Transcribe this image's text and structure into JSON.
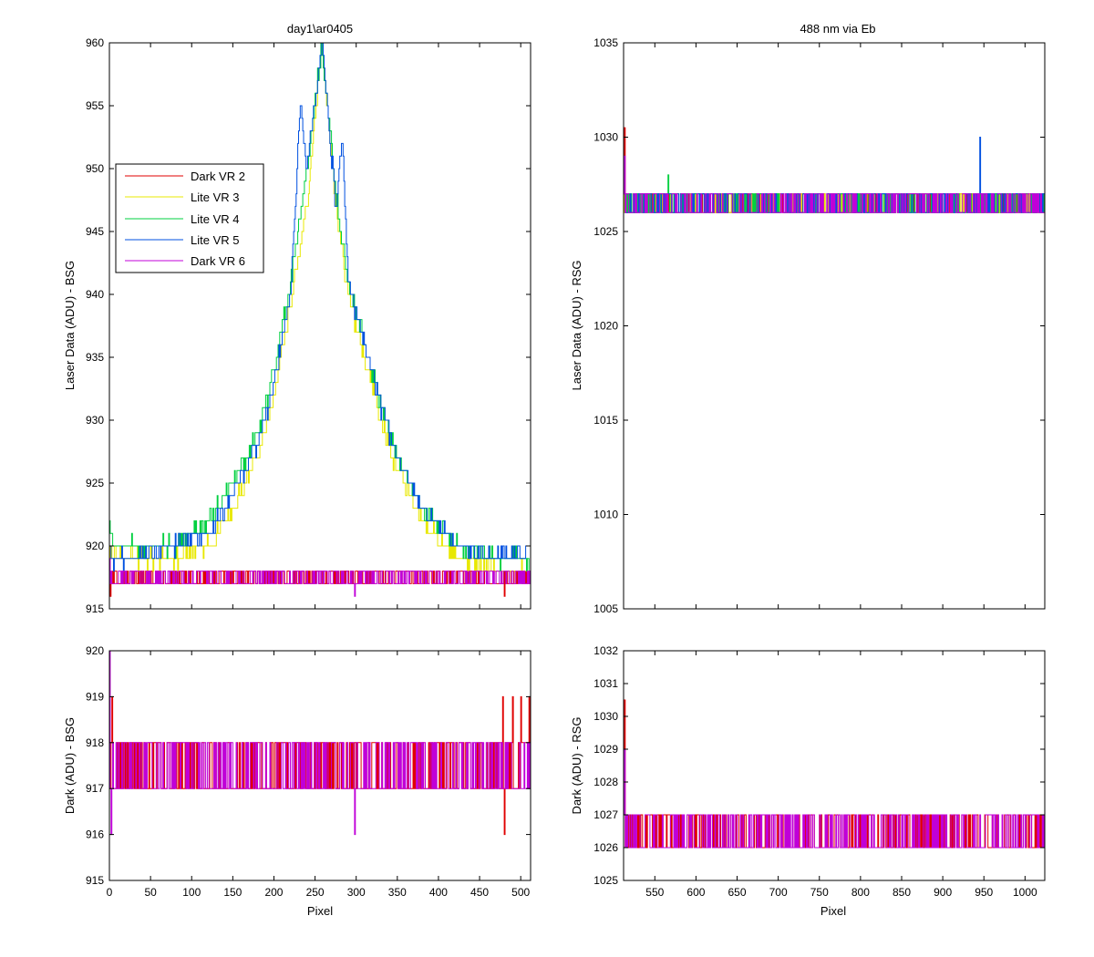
{
  "figure": {
    "panels": [
      {
        "id": "top_left",
        "title": "day1\\ar0405",
        "ylabel": "Laser Data (ADU) - BSG",
        "xlabel": "",
        "xlim": [
          0,
          512
        ],
        "ylim": [
          915,
          960
        ]
      },
      {
        "id": "top_right",
        "title": "488 nm via Eb",
        "ylabel": "Laser Data (ADU) - RSG",
        "xlabel": "",
        "xlim": [
          512,
          1024
        ],
        "ylim": [
          1005,
          1035
        ]
      },
      {
        "id": "bottom_left",
        "title": "",
        "ylabel": "Dark (ADU) - BSG",
        "xlabel": "Pixel",
        "xlim": [
          0,
          512
        ],
        "ylim": [
          915,
          920
        ]
      },
      {
        "id": "bottom_right",
        "title": "",
        "ylabel": "Dark (ADU) - RSG",
        "xlabel": "Pixel",
        "xlim": [
          512,
          1024
        ],
        "ylim": [
          1025,
          1032
        ]
      }
    ],
    "legend": {
      "placement": "upper-left of top-left panel",
      "entries": [
        {
          "name": "Dark VR 2",
          "color": "#e00000"
        },
        {
          "name": "Lite VR 3",
          "color": "#e8e800"
        },
        {
          "name": "Lite VR 4",
          "color": "#00d040"
        },
        {
          "name": "Lite VR 5",
          "color": "#0050e0"
        },
        {
          "name": "Dark VR 6",
          "color": "#c000d8"
        }
      ]
    }
  },
  "chart_data": [
    {
      "type": "line",
      "panel": "top_left",
      "title": "day1\\ar0405",
      "ylabel": "Laser Data (ADU) - BSG",
      "xlim": [
        0,
        512
      ],
      "ylim": [
        915,
        960
      ],
      "xticks": [
        0,
        50,
        100,
        150,
        200,
        250,
        300,
        350,
        400,
        450,
        500
      ],
      "yticks": [
        915,
        920,
        925,
        930,
        935,
        940,
        945,
        950,
        955,
        960
      ],
      "show_xtick_labels": false,
      "series": [
        {
          "name": "Dark VR 2",
          "color": "#e00000",
          "kind": "noise",
          "base": 917,
          "alt": 918,
          "spikes": [
            [
              1,
              916
            ],
            [
              480,
              916
            ]
          ]
        },
        {
          "name": "Lite VR 3",
          "color": "#e8e800",
          "kind": "peak",
          "x": [
            0,
            5,
            30,
            80,
            120,
            150,
            180,
            200,
            220,
            240,
            258,
            275,
            290,
            310,
            330,
            350,
            380,
            420,
            470,
            512
          ],
          "y": [
            920,
            919,
            919,
            919,
            920,
            923,
            927,
            932,
            939,
            947,
            960,
            947,
            940,
            935,
            930,
            926,
            922,
            919,
            918,
            918
          ]
        },
        {
          "name": "Lite VR 4",
          "color": "#00d040",
          "kind": "peak",
          "x": [
            0,
            5,
            30,
            80,
            120,
            150,
            180,
            200,
            220,
            240,
            258,
            275,
            290,
            310,
            330,
            350,
            380,
            420,
            470,
            512
          ],
          "y": [
            922,
            920,
            920,
            920,
            922,
            925,
            929,
            934,
            941,
            950,
            960,
            948,
            941,
            936,
            931,
            927,
            923,
            920,
            919,
            919
          ]
        },
        {
          "name": "Lite VR 5",
          "color": "#0050e0",
          "kind": "peak",
          "x": [
            0,
            5,
            30,
            80,
            120,
            150,
            180,
            200,
            220,
            232,
            240,
            258,
            275,
            283,
            290,
            310,
            330,
            350,
            380,
            420,
            470,
            512
          ],
          "y": [
            920,
            919,
            919,
            920,
            921,
            924,
            928,
            933,
            940,
            955,
            950,
            960,
            947,
            952,
            941,
            936,
            931,
            927,
            923,
            920,
            919,
            920
          ]
        },
        {
          "name": "Dark VR 6",
          "color": "#c000d8",
          "kind": "noise",
          "base": 917,
          "alt": 918,
          "spikes": [
            [
              0,
              919
            ],
            [
              298,
              916
            ]
          ]
        }
      ]
    },
    {
      "type": "line",
      "panel": "top_right",
      "title": "488 nm via Eb",
      "ylabel": "Laser Data (ADU) - RSG",
      "xlim": [
        512,
        1024
      ],
      "ylim": [
        1005,
        1035
      ],
      "xticks": [
        550,
        600,
        650,
        700,
        750,
        800,
        850,
        900,
        950,
        1000
      ],
      "yticks": [
        1005,
        1010,
        1015,
        1020,
        1025,
        1030,
        1035
      ],
      "show_xtick_labels": false,
      "series": [
        {
          "name": "Dark VR 2",
          "color": "#e00000",
          "kind": "noise",
          "base": 1026,
          "alt": 1027,
          "spikes": [
            [
              513,
              1030.5
            ]
          ]
        },
        {
          "name": "Lite VR 3",
          "color": "#e8e800",
          "kind": "noise",
          "base": 1026,
          "alt": 1027,
          "spikes": []
        },
        {
          "name": "Lite VR 4",
          "color": "#00d040",
          "kind": "noise",
          "base": 1026,
          "alt": 1027,
          "spikes": [
            [
              566,
              1028
            ]
          ]
        },
        {
          "name": "Lite VR 5",
          "color": "#0050e0",
          "kind": "noise",
          "base": 1026,
          "alt": 1027,
          "spikes": [
            [
              945,
              1030
            ]
          ]
        },
        {
          "name": "Dark VR 6",
          "color": "#c000d8",
          "kind": "noise",
          "base": 1026,
          "alt": 1027,
          "spikes": [
            [
              513,
              1029
            ]
          ]
        }
      ]
    },
    {
      "type": "line",
      "panel": "bottom_left",
      "ylabel": "Dark (ADU) - BSG",
      "xlabel": "Pixel",
      "xlim": [
        0,
        512
      ],
      "ylim": [
        915,
        920
      ],
      "xticks": [
        0,
        50,
        100,
        150,
        200,
        250,
        300,
        350,
        400,
        450,
        500
      ],
      "yticks": [
        915,
        916,
        917,
        918,
        919,
        920
      ],
      "show_xtick_labels": true,
      "series": [
        {
          "name": "Dark VR 2",
          "color": "#e00000",
          "kind": "noise",
          "base": 917,
          "alt": 918,
          "spikes": [
            [
              3,
              919
            ],
            [
              478,
              919
            ],
            [
              480,
              916
            ],
            [
              490,
              919
            ],
            [
              500,
              919
            ],
            [
              510,
              919
            ]
          ]
        },
        {
          "name": "Dark VR 6",
          "color": "#c000d8",
          "kind": "noise",
          "base": 917,
          "alt": 918,
          "spikes": [
            [
              0,
              920
            ],
            [
              2,
              916
            ],
            [
              298,
              916
            ]
          ]
        }
      ]
    },
    {
      "type": "line",
      "panel": "bottom_right",
      "ylabel": "Dark (ADU) - RSG",
      "xlabel": "Pixel",
      "xlim": [
        512,
        1024
      ],
      "ylim": [
        1025,
        1032
      ],
      "xticks": [
        550,
        600,
        650,
        700,
        750,
        800,
        850,
        900,
        950,
        1000
      ],
      "yticks": [
        1025,
        1026,
        1027,
        1028,
        1029,
        1030,
        1031,
        1032
      ],
      "show_xtick_labels": true,
      "series": [
        {
          "name": "Dark VR 2",
          "color": "#e00000",
          "kind": "noise",
          "base": 1026,
          "alt": 1027,
          "spikes": [
            [
              513,
              1030.5
            ]
          ]
        },
        {
          "name": "Dark VR 6",
          "color": "#c000d8",
          "kind": "noise",
          "base": 1026,
          "alt": 1027,
          "spikes": [
            [
              513,
              1029
            ]
          ]
        }
      ]
    }
  ]
}
